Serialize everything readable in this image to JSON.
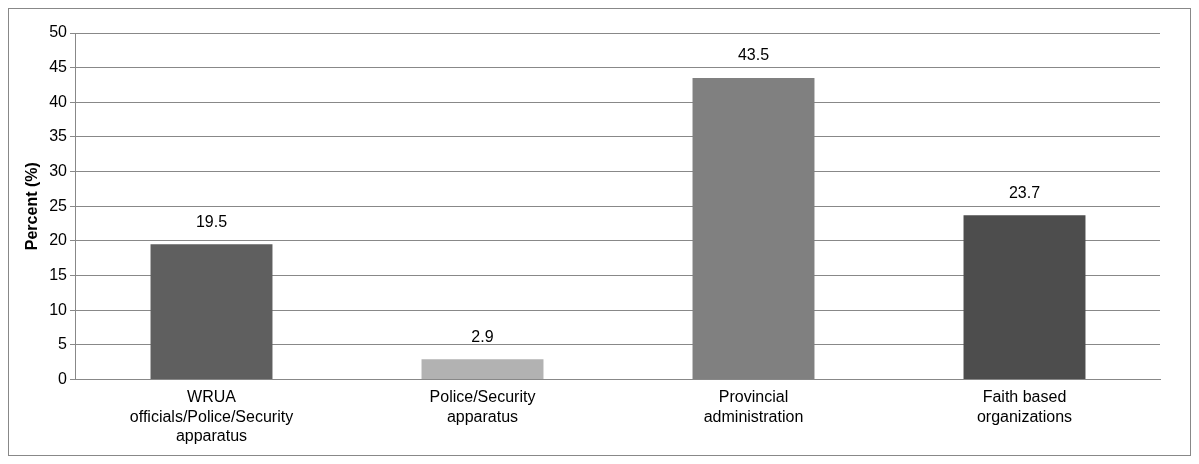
{
  "chart_data": {
    "type": "bar",
    "ylabel": "Percent (%)",
    "categories": [
      "WRUA officials/Police/Security apparatus",
      "Police/Security apparatus",
      "Provincial administration",
      "Faith based organizations"
    ],
    "values": [
      19.5,
      2.9,
      43.5,
      23.7
    ],
    "colors": [
      "#5f5f5f",
      "#b2b2b2",
      "#808080",
      "#4d4d4d"
    ],
    "ylim": [
      0,
      50
    ],
    "yticks": [
      0,
      5,
      10,
      15,
      20,
      25,
      30,
      35,
      40,
      45,
      50
    ],
    "grid": "y",
    "data_labels": true
  }
}
